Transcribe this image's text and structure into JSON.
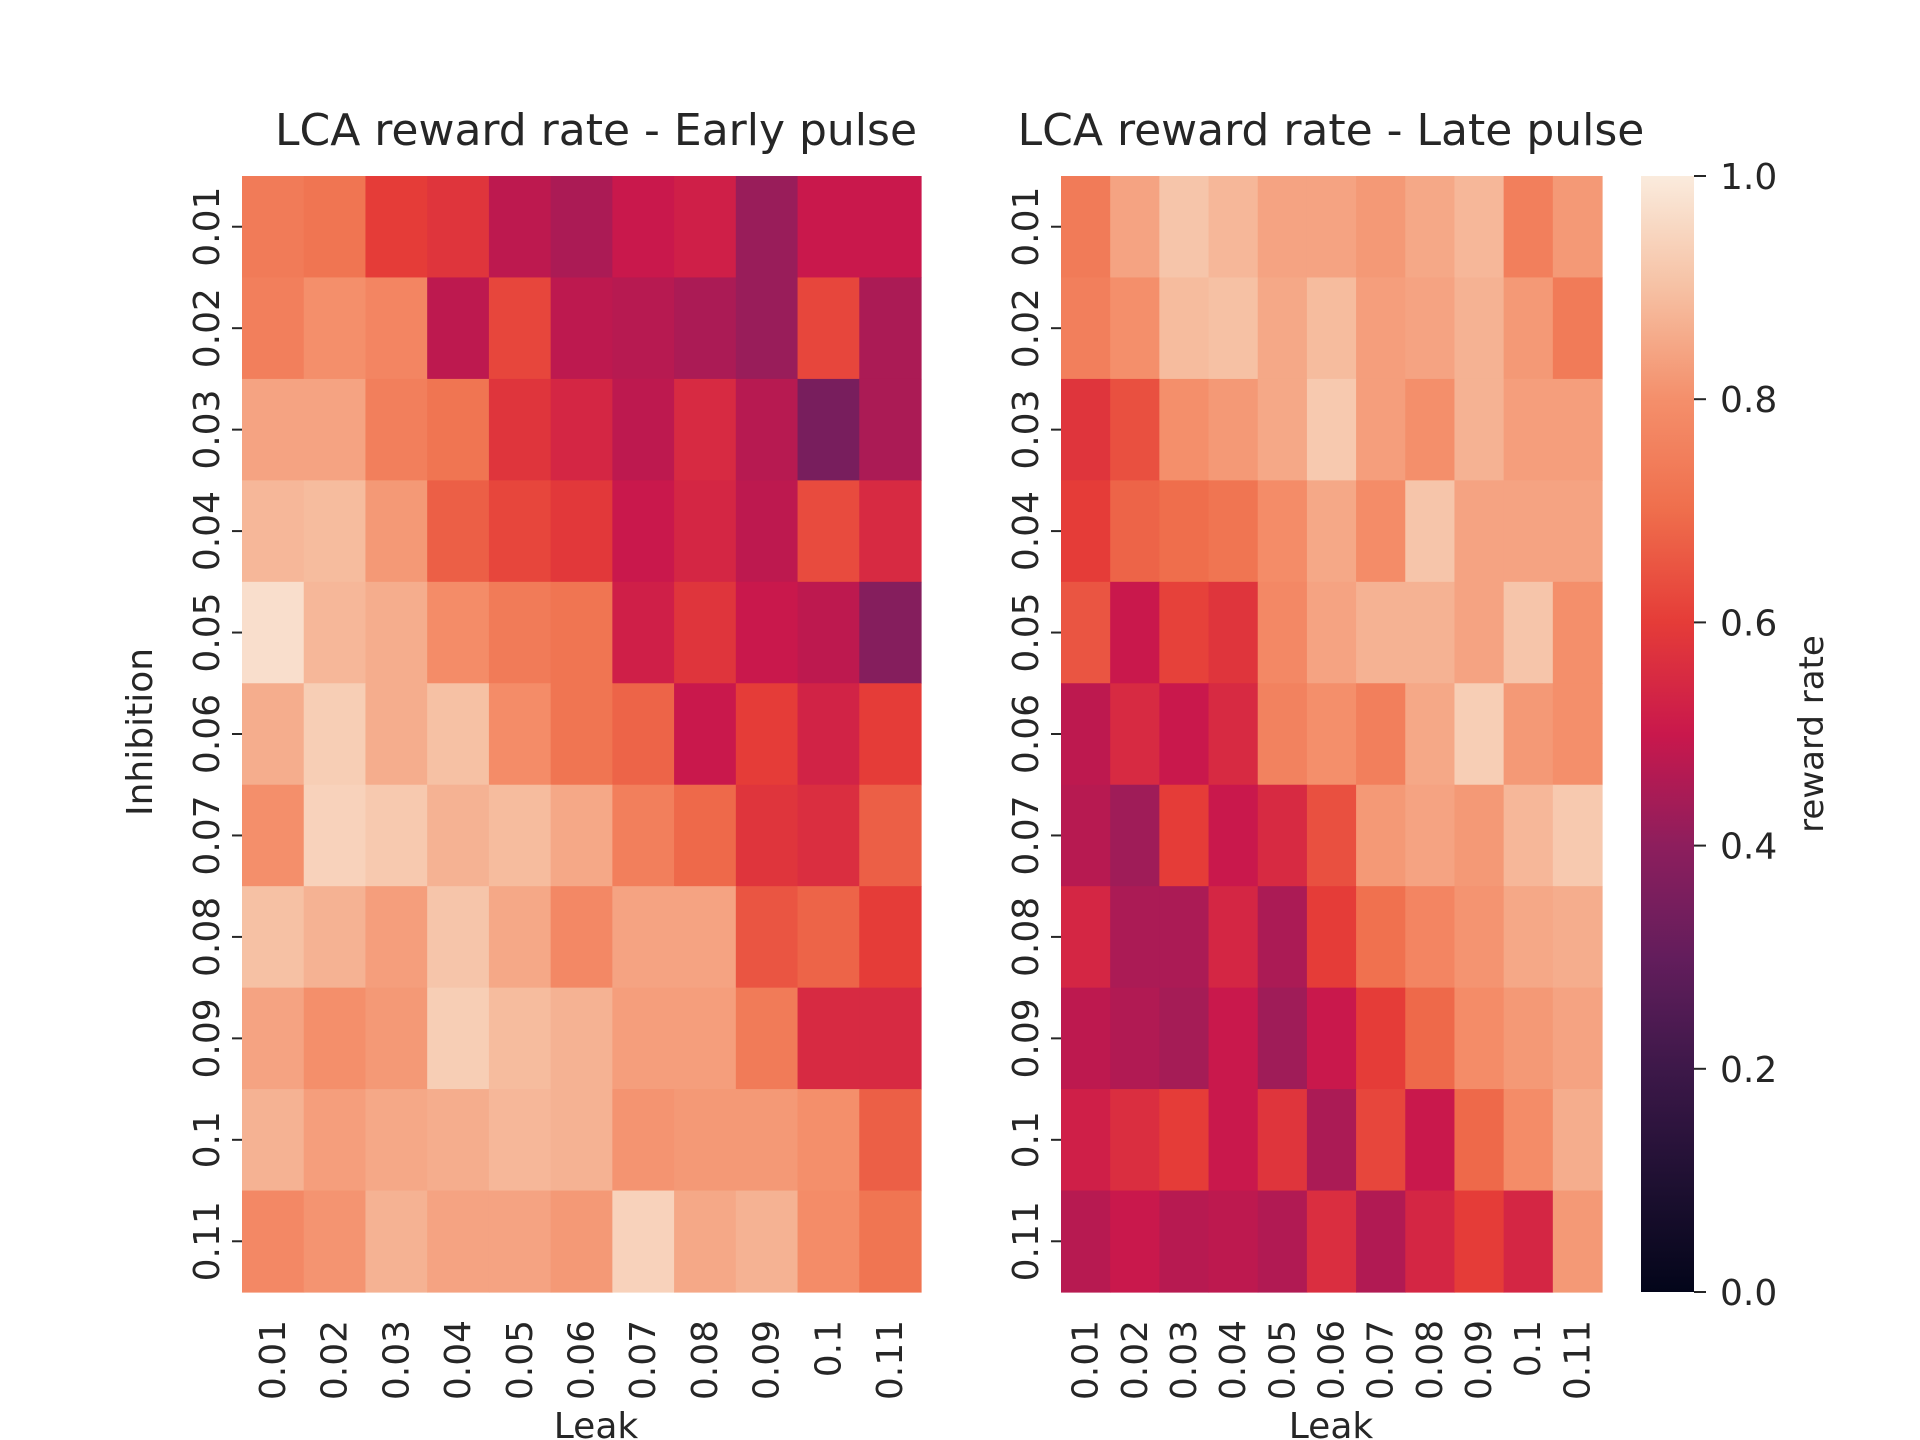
{
  "chart_data": [
    {
      "type": "heatmap",
      "title": "LCA reward rate - Early pulse",
      "xlabel": "Leak",
      "ylabel": "Inhibition",
      "x_categories": [
        "0.01",
        "0.02",
        "0.03",
        "0.04",
        "0.05",
        "0.06",
        "0.07",
        "0.08",
        "0.09",
        "0.1",
        "0.11"
      ],
      "y_categories": [
        "0.01",
        "0.02",
        "0.03",
        "0.04",
        "0.05",
        "0.06",
        "0.07",
        "0.08",
        "0.09",
        "0.1",
        "0.11"
      ],
      "values": [
        [
          0.74,
          0.72,
          0.6,
          0.58,
          0.48,
          0.45,
          0.5,
          0.52,
          0.42,
          0.5,
          0.5
        ],
        [
          0.75,
          0.8,
          0.77,
          0.48,
          0.62,
          0.48,
          0.47,
          0.45,
          0.42,
          0.62,
          0.45
        ],
        [
          0.84,
          0.84,
          0.75,
          0.72,
          0.58,
          0.54,
          0.48,
          0.55,
          0.47,
          0.35,
          0.45
        ],
        [
          0.88,
          0.89,
          0.82,
          0.67,
          0.62,
          0.59,
          0.5,
          0.54,
          0.48,
          0.63,
          0.55
        ],
        [
          0.97,
          0.88,
          0.86,
          0.79,
          0.74,
          0.72,
          0.52,
          0.58,
          0.5,
          0.48,
          0.38
        ],
        [
          0.86,
          0.93,
          0.86,
          0.9,
          0.79,
          0.72,
          0.68,
          0.5,
          0.6,
          0.53,
          0.6
        ],
        [
          0.8,
          0.94,
          0.92,
          0.87,
          0.89,
          0.85,
          0.75,
          0.69,
          0.58,
          0.56,
          0.67
        ],
        [
          0.9,
          0.87,
          0.83,
          0.91,
          0.85,
          0.78,
          0.84,
          0.84,
          0.65,
          0.68,
          0.6
        ],
        [
          0.84,
          0.8,
          0.82,
          0.93,
          0.89,
          0.87,
          0.83,
          0.83,
          0.74,
          0.55,
          0.55
        ],
        [
          0.87,
          0.83,
          0.85,
          0.86,
          0.88,
          0.87,
          0.81,
          0.82,
          0.82,
          0.8,
          0.67
        ],
        [
          0.78,
          0.81,
          0.87,
          0.84,
          0.84,
          0.82,
          0.94,
          0.85,
          0.87,
          0.79,
          0.72
        ]
      ],
      "colorbar": {
        "label": "reward rate",
        "vmin": 0.0,
        "vmax": 1.0
      }
    },
    {
      "type": "heatmap",
      "title": "LCA reward rate - Late pulse",
      "xlabel": "Leak",
      "ylabel": "",
      "x_categories": [
        "0.01",
        "0.02",
        "0.03",
        "0.04",
        "0.05",
        "0.06",
        "0.07",
        "0.08",
        "0.09",
        "0.1",
        "0.11"
      ],
      "y_categories": [
        "0.01",
        "0.02",
        "0.03",
        "0.04",
        "0.05",
        "0.06",
        "0.07",
        "0.08",
        "0.09",
        "0.1",
        "0.11"
      ],
      "values": [
        [
          0.74,
          0.84,
          0.91,
          0.88,
          0.84,
          0.84,
          0.82,
          0.85,
          0.88,
          0.75,
          0.82
        ],
        [
          0.75,
          0.8,
          0.89,
          0.9,
          0.85,
          0.89,
          0.83,
          0.84,
          0.87,
          0.82,
          0.74
        ],
        [
          0.58,
          0.64,
          0.8,
          0.82,
          0.85,
          0.92,
          0.83,
          0.8,
          0.87,
          0.83,
          0.83
        ],
        [
          0.6,
          0.68,
          0.7,
          0.72,
          0.79,
          0.85,
          0.79,
          0.91,
          0.84,
          0.84,
          0.84
        ],
        [
          0.65,
          0.5,
          0.61,
          0.58,
          0.78,
          0.84,
          0.87,
          0.87,
          0.84,
          0.91,
          0.8
        ],
        [
          0.48,
          0.55,
          0.5,
          0.55,
          0.76,
          0.8,
          0.75,
          0.85,
          0.93,
          0.82,
          0.8
        ],
        [
          0.47,
          0.43,
          0.6,
          0.5,
          0.55,
          0.64,
          0.82,
          0.84,
          0.82,
          0.88,
          0.92
        ],
        [
          0.54,
          0.45,
          0.45,
          0.54,
          0.45,
          0.6,
          0.71,
          0.77,
          0.81,
          0.85,
          0.86
        ],
        [
          0.48,
          0.46,
          0.44,
          0.5,
          0.43,
          0.5,
          0.6,
          0.69,
          0.79,
          0.82,
          0.84
        ],
        [
          0.52,
          0.56,
          0.6,
          0.5,
          0.58,
          0.45,
          0.62,
          0.5,
          0.69,
          0.79,
          0.86
        ],
        [
          0.47,
          0.5,
          0.47,
          0.48,
          0.46,
          0.56,
          0.46,
          0.54,
          0.6,
          0.54,
          0.82
        ]
      ],
      "colorbar": {
        "label": "reward rate",
        "vmin": 0.0,
        "vmax": 1.0
      }
    }
  ],
  "colorbar": {
    "label": "reward rate",
    "ticks": [
      "0.0",
      "0.2",
      "0.4",
      "0.6",
      "0.8",
      "1.0"
    ],
    "tick_values": [
      0.0,
      0.2,
      0.4,
      0.6,
      0.8,
      1.0
    ],
    "colormap": "rocket"
  }
}
